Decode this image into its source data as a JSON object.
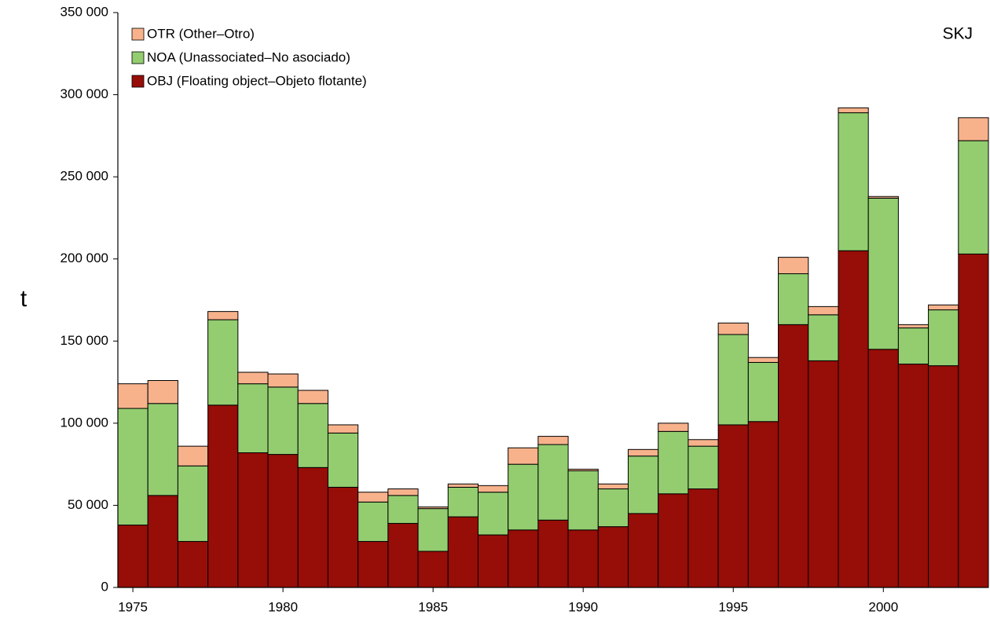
{
  "chart_data": {
    "type": "stacked_bar",
    "annotation": "SKJ",
    "y_label": "t",
    "x": [
      1975,
      1976,
      1977,
      1978,
      1979,
      1980,
      1981,
      1982,
      1983,
      1984,
      1985,
      1986,
      1987,
      1988,
      1989,
      1990,
      1991,
      1992,
      1993,
      1994,
      1995,
      1996,
      1997,
      1998,
      1999,
      2000,
      2001,
      2002,
      2003
    ],
    "xlim": [
      1974.5,
      2003.5
    ],
    "xticks": [
      1975,
      1980,
      1985,
      1990,
      1995,
      2000
    ],
    "ylim": [
      0,
      350000
    ],
    "yticks": [
      0,
      {
        "value": 50000,
        "label": "50 000"
      },
      {
        "value": 100000,
        "label": "100 000"
      },
      {
        "value": 150000,
        "label": "150 000"
      },
      {
        "value": 200000,
        "label": "200 000"
      },
      {
        "value": 250000,
        "label": "250 000"
      },
      {
        "value": 300000,
        "label": "300 000"
      },
      {
        "value": 350000,
        "label": "350 000"
      }
    ],
    "grid": false,
    "legend": "top-left",
    "series": [
      {
        "name": "OBJ (Floating object–Objeto flotante)",
        "color": "#970d07",
        "values": [
          38000,
          56000,
          28000,
          111000,
          82000,
          81000,
          73000,
          61000,
          28000,
          39000,
          22000,
          43000,
          32000,
          35000,
          41000,
          35000,
          37000,
          45000,
          57000,
          60000,
          99000,
          101000,
          160000,
          138000,
          205000,
          145000,
          136000,
          135000,
          203000
        ]
      },
      {
        "name": "NOA (Unassociated–No asociado)",
        "color": "#93cd70",
        "values": [
          71000,
          56000,
          46000,
          52000,
          42000,
          41000,
          39000,
          33000,
          24000,
          17000,
          26000,
          18000,
          26000,
          40000,
          46000,
          36000,
          23000,
          35000,
          38000,
          26000,
          55000,
          36000,
          31000,
          28000,
          84000,
          92000,
          22000,
          34000,
          69000
        ]
      },
      {
        "name": "OTR (Other–Otro)",
        "color": "#f7b28c",
        "values": [
          15000,
          14000,
          12000,
          5000,
          7000,
          8000,
          8000,
          5000,
          6000,
          4000,
          1000,
          2000,
          4000,
          10000,
          5000,
          1000,
          3000,
          4000,
          5000,
          4000,
          7000,
          3000,
          10000,
          5000,
          3000,
          1000,
          2000,
          3000,
          14000
        ]
      }
    ]
  }
}
